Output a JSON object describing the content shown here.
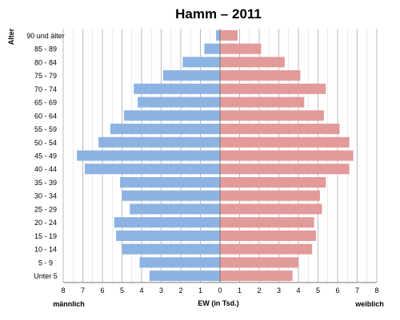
{
  "chart_data": {
    "type": "bar",
    "title": "Hamm – 2011",
    "xlabel": "EW (in Tsd.)",
    "ylabel": "Alter",
    "left_label": "männlich",
    "right_label": "weiblich",
    "xlim": [
      -8,
      8
    ],
    "x_ticks": [
      "8",
      "7",
      "6",
      "5",
      "4",
      "3",
      "2",
      "1",
      "0",
      "1",
      "2",
      "3",
      "4",
      "5",
      "6",
      "7",
      "8"
    ],
    "grid": true,
    "categories": [
      "Unter 5",
      "5 - 9",
      "10 - 14",
      "15 - 19",
      "20 - 24",
      "25 - 29",
      "30 - 34",
      "35 - 39",
      "40 - 44",
      "45 - 49",
      "50 - 54",
      "55 - 59",
      "60 - 64",
      "65 - 69",
      "70 - 74",
      "75 - 79",
      "80 - 84",
      "85 - 89",
      "90 und älter"
    ],
    "series": [
      {
        "name": "männlich",
        "color": "#8db3e2",
        "values": [
          3.6,
          4.1,
          5.0,
          5.3,
          5.4,
          4.6,
          5.0,
          5.1,
          6.9,
          7.3,
          6.2,
          5.6,
          4.9,
          4.2,
          4.4,
          2.9,
          1.9,
          0.8,
          0.2
        ]
      },
      {
        "name": "weiblich",
        "color": "#e39a9a",
        "values": [
          3.7,
          4.0,
          4.7,
          4.9,
          4.8,
          5.2,
          5.1,
          5.4,
          6.6,
          6.8,
          6.6,
          6.1,
          5.3,
          4.3,
          5.4,
          4.1,
          3.3,
          2.1,
          0.9
        ]
      }
    ]
  }
}
